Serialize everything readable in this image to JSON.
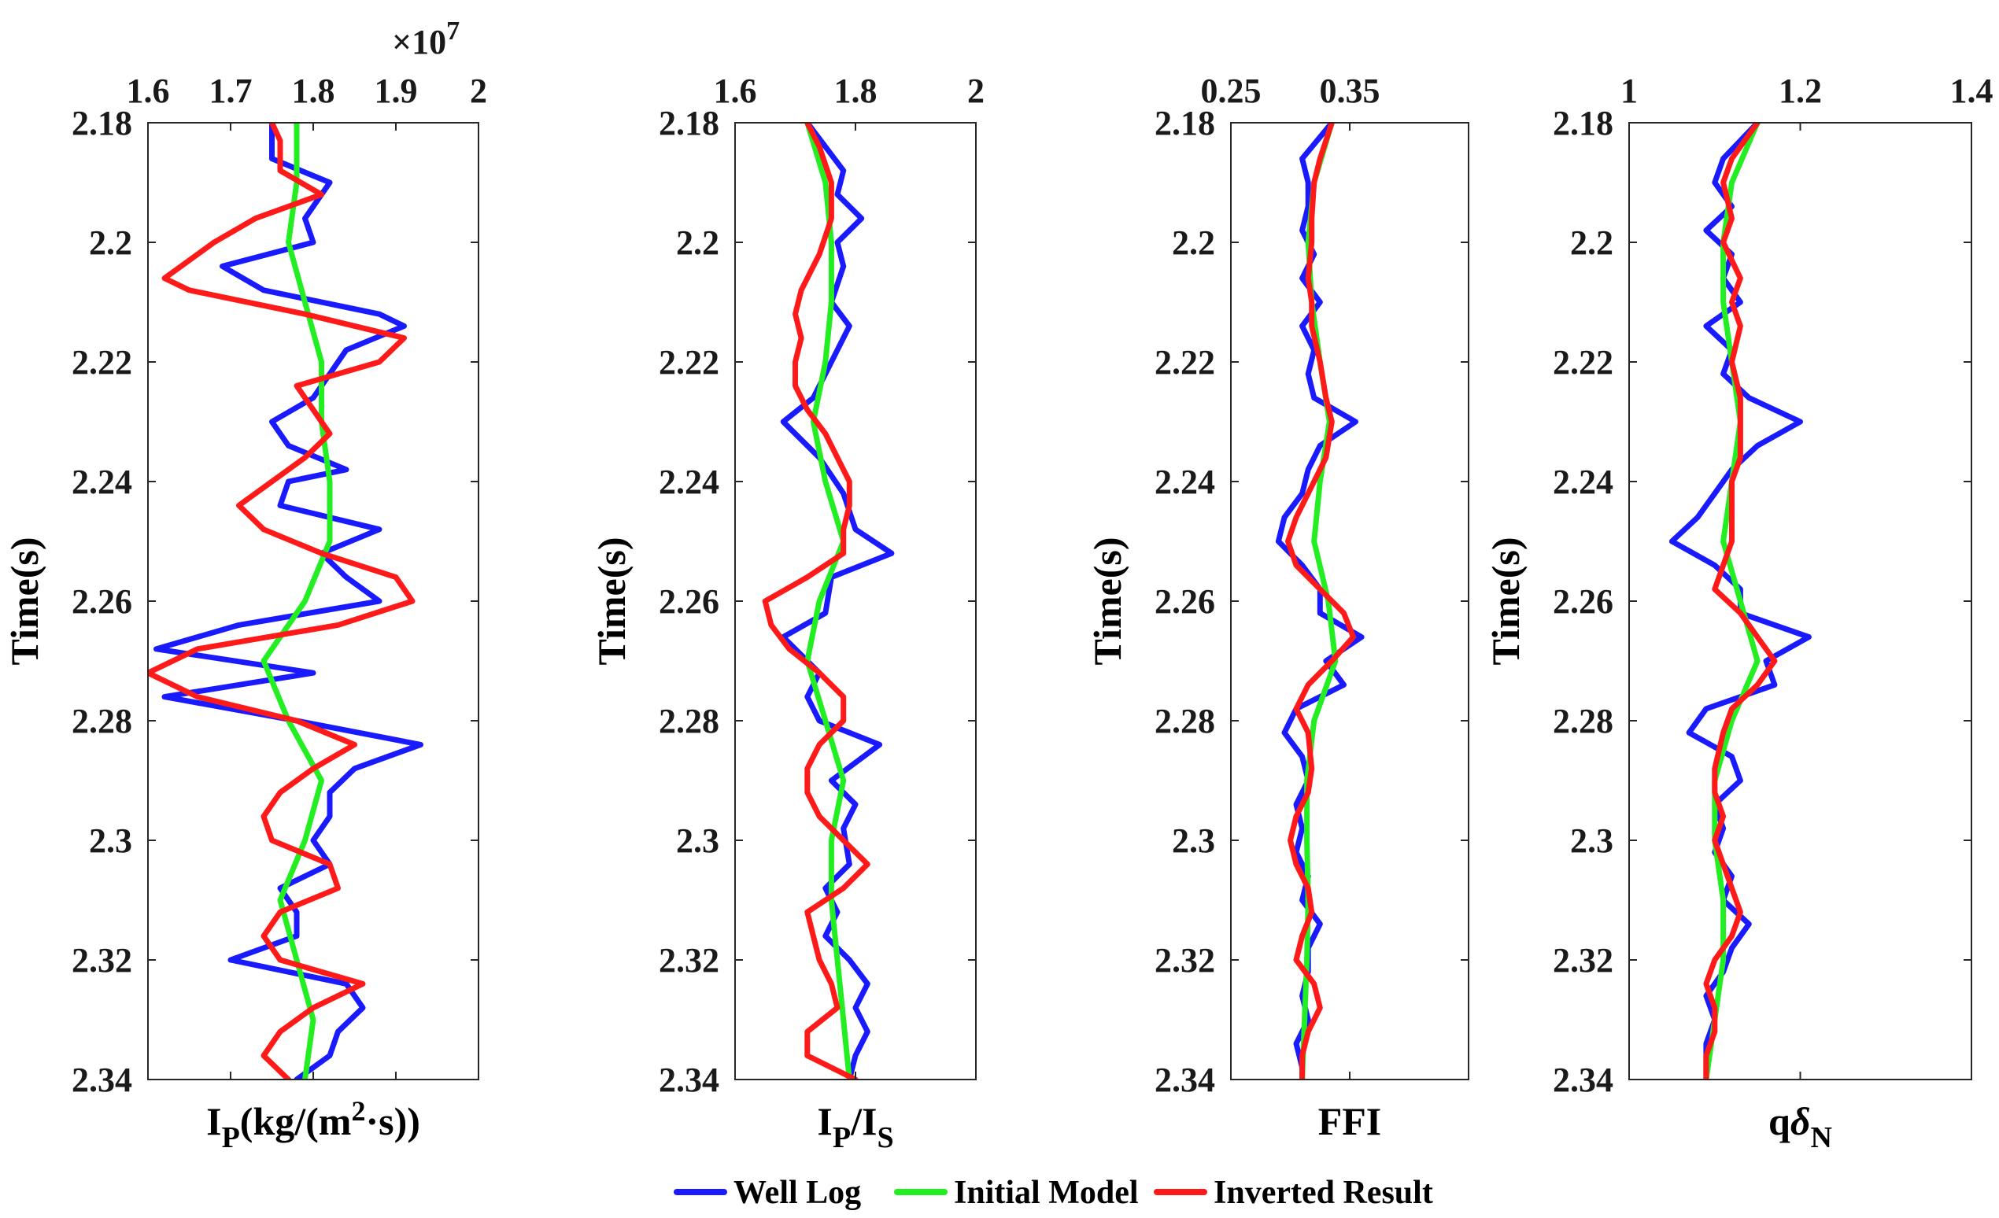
{
  "chart_data": [
    {
      "type": "line",
      "xlabel_main": "I",
      "xlabel_sub": "P",
      "xlabel_rest": "(kg/(m",
      "xlabel_sup": "2",
      "xlabel_tail": "·s))",
      "ylabel": "Time(s)",
      "xlim": [
        1.6,
        2.0
      ],
      "xticks": [
        1.6,
        1.7,
        1.8,
        1.9,
        2.0
      ],
      "xtick_labels": [
        "1.6",
        "1.7",
        "1.8",
        "1.9",
        "2"
      ],
      "exponent_prefix": "×10",
      "exponent_power": "7",
      "ylim": [
        2.18,
        2.34
      ],
      "yticks": [
        2.18,
        2.2,
        2.22,
        2.24,
        2.26,
        2.28,
        2.3,
        2.32,
        2.34
      ],
      "ytick_labels": [
        "2.18",
        "2.2",
        "2.22",
        "2.24",
        "2.26",
        "2.28",
        "2.3",
        "2.32",
        "2.34"
      ],
      "series": [
        {
          "name": "Well Log",
          "t": [
            2.18,
            2.186,
            2.19,
            2.196,
            2.2,
            2.204,
            2.208,
            2.212,
            2.214,
            2.218,
            2.222,
            2.226,
            2.23,
            2.234,
            2.238,
            2.24,
            2.244,
            2.248,
            2.252,
            2.256,
            2.26,
            2.264,
            2.268,
            2.272,
            2.276,
            2.28,
            2.284,
            2.288,
            2.292,
            2.296,
            2.3,
            2.304,
            2.308,
            2.312,
            2.316,
            2.32,
            2.324,
            2.328,
            2.332,
            2.336,
            2.34
          ],
          "values": [
            1.75,
            1.75,
            1.82,
            1.79,
            1.8,
            1.69,
            1.74,
            1.88,
            1.91,
            1.84,
            1.82,
            1.8,
            1.75,
            1.77,
            1.84,
            1.77,
            1.76,
            1.88,
            1.81,
            1.84,
            1.88,
            1.71,
            1.61,
            1.8,
            1.62,
            1.78,
            1.93,
            1.85,
            1.82,
            1.82,
            1.8,
            1.82,
            1.76,
            1.78,
            1.78,
            1.7,
            1.84,
            1.86,
            1.83,
            1.82,
            1.78
          ]
        },
        {
          "name": "Initial Model",
          "t": [
            2.18,
            2.19,
            2.2,
            2.21,
            2.22,
            2.23,
            2.24,
            2.25,
            2.26,
            2.27,
            2.28,
            2.29,
            2.3,
            2.31,
            2.32,
            2.33,
            2.34
          ],
          "values": [
            1.78,
            1.78,
            1.77,
            1.79,
            1.81,
            1.81,
            1.82,
            1.82,
            1.79,
            1.74,
            1.77,
            1.81,
            1.79,
            1.76,
            1.78,
            1.8,
            1.79
          ]
        },
        {
          "name": "Inverted Result",
          "t": [
            2.18,
            2.183,
            2.188,
            2.192,
            2.196,
            2.2,
            2.204,
            2.206,
            2.208,
            2.212,
            2.216,
            2.22,
            2.224,
            2.228,
            2.232,
            2.236,
            2.24,
            2.244,
            2.248,
            2.252,
            2.256,
            2.26,
            2.264,
            2.268,
            2.272,
            2.276,
            2.28,
            2.284,
            2.288,
            2.292,
            2.296,
            2.3,
            2.304,
            2.308,
            2.312,
            2.316,
            2.32,
            2.324,
            2.328,
            2.332,
            2.336,
            2.34
          ],
          "values": [
            1.75,
            1.76,
            1.76,
            1.81,
            1.73,
            1.68,
            1.64,
            1.62,
            1.65,
            1.79,
            1.91,
            1.88,
            1.78,
            1.8,
            1.82,
            1.79,
            1.75,
            1.71,
            1.74,
            1.81,
            1.9,
            1.92,
            1.83,
            1.66,
            1.6,
            1.66,
            1.78,
            1.85,
            1.8,
            1.76,
            1.74,
            1.75,
            1.82,
            1.83,
            1.76,
            1.74,
            1.76,
            1.86,
            1.8,
            1.76,
            1.74,
            1.77
          ]
        }
      ]
    },
    {
      "type": "line",
      "xlabel_main": "I",
      "xlabel_sub": "P",
      "xlabel_rest": "/I",
      "xlabel_sub2": "S",
      "ylabel": "Time(s)",
      "xlim": [
        1.6,
        2.0
      ],
      "xticks": [
        1.6,
        1.8,
        2.0
      ],
      "xtick_labels": [
        "1.6",
        "1.8",
        "2"
      ],
      "ylim": [
        2.18,
        2.34
      ],
      "yticks": [
        2.18,
        2.2,
        2.22,
        2.24,
        2.26,
        2.28,
        2.3,
        2.32,
        2.34
      ],
      "ytick_labels": [
        "2.18",
        "2.2",
        "2.22",
        "2.24",
        "2.26",
        "2.28",
        "2.3",
        "2.32",
        "2.34"
      ],
      "series": [
        {
          "name": "Well Log",
          "t": [
            2.18,
            2.188,
            2.192,
            2.196,
            2.2,
            2.204,
            2.21,
            2.214,
            2.218,
            2.222,
            2.226,
            2.23,
            2.236,
            2.242,
            2.248,
            2.252,
            2.256,
            2.262,
            2.266,
            2.272,
            2.276,
            2.28,
            2.284,
            2.29,
            2.294,
            2.298,
            2.304,
            2.308,
            2.312,
            2.316,
            2.32,
            2.324,
            2.328,
            2.332,
            2.336,
            2.34
          ],
          "values": [
            1.72,
            1.78,
            1.77,
            1.81,
            1.77,
            1.78,
            1.76,
            1.79,
            1.77,
            1.75,
            1.73,
            1.68,
            1.74,
            1.78,
            1.8,
            1.86,
            1.76,
            1.75,
            1.68,
            1.74,
            1.72,
            1.74,
            1.84,
            1.76,
            1.8,
            1.78,
            1.79,
            1.75,
            1.77,
            1.75,
            1.79,
            1.82,
            1.8,
            1.82,
            1.8,
            1.79
          ]
        },
        {
          "name": "Initial Model",
          "t": [
            2.18,
            2.19,
            2.2,
            2.21,
            2.22,
            2.23,
            2.24,
            2.25,
            2.26,
            2.27,
            2.28,
            2.29,
            2.3,
            2.31,
            2.32,
            2.33,
            2.34
          ],
          "values": [
            1.72,
            1.75,
            1.76,
            1.76,
            1.75,
            1.73,
            1.75,
            1.78,
            1.74,
            1.72,
            1.75,
            1.78,
            1.76,
            1.76,
            1.77,
            1.78,
            1.79
          ]
        },
        {
          "name": "Inverted Result",
          "t": [
            2.18,
            2.184,
            2.19,
            2.196,
            2.202,
            2.208,
            2.212,
            2.216,
            2.22,
            2.224,
            2.228,
            2.232,
            2.236,
            2.24,
            2.244,
            2.248,
            2.252,
            2.256,
            2.26,
            2.264,
            2.268,
            2.272,
            2.276,
            2.28,
            2.284,
            2.288,
            2.292,
            2.296,
            2.3,
            2.304,
            2.308,
            2.312,
            2.316,
            2.32,
            2.324,
            2.328,
            2.332,
            2.336,
            2.34
          ],
          "values": [
            1.72,
            1.74,
            1.76,
            1.76,
            1.74,
            1.71,
            1.7,
            1.71,
            1.7,
            1.7,
            1.72,
            1.75,
            1.77,
            1.79,
            1.79,
            1.78,
            1.78,
            1.72,
            1.65,
            1.66,
            1.69,
            1.74,
            1.78,
            1.78,
            1.74,
            1.72,
            1.72,
            1.74,
            1.78,
            1.82,
            1.78,
            1.72,
            1.73,
            1.74,
            1.76,
            1.77,
            1.72,
            1.72,
            1.8
          ]
        }
      ]
    },
    {
      "type": "line",
      "xlabel_main": "FFI",
      "ylabel": "Time(s)",
      "xlim": [
        0.25,
        0.45
      ],
      "xticks": [
        0.25,
        0.35
      ],
      "xtick_labels": [
        "0.25",
        "0.35"
      ],
      "ylim": [
        2.18,
        2.34
      ],
      "yticks": [
        2.18,
        2.2,
        2.22,
        2.24,
        2.26,
        2.28,
        2.3,
        2.32,
        2.34
      ],
      "ytick_labels": [
        "2.18",
        "2.2",
        "2.22",
        "2.24",
        "2.26",
        "2.28",
        "2.3",
        "2.32",
        "2.34"
      ],
      "series": [
        {
          "name": "Well Log",
          "t": [
            2.18,
            2.186,
            2.19,
            2.194,
            2.198,
            2.202,
            2.206,
            2.21,
            2.214,
            2.218,
            2.222,
            2.226,
            2.23,
            2.234,
            2.238,
            2.242,
            2.246,
            2.25,
            2.254,
            2.258,
            2.262,
            2.266,
            2.27,
            2.274,
            2.278,
            2.282,
            2.286,
            2.29,
            2.294,
            2.298,
            2.302,
            2.306,
            2.31,
            2.314,
            2.318,
            2.322,
            2.326,
            2.33,
            2.334,
            2.338,
            2.34
          ],
          "values": [
            0.335,
            0.31,
            0.315,
            0.315,
            0.31,
            0.32,
            0.31,
            0.325,
            0.31,
            0.32,
            0.315,
            0.32,
            0.355,
            0.325,
            0.315,
            0.31,
            0.295,
            0.29,
            0.31,
            0.325,
            0.325,
            0.36,
            0.33,
            0.345,
            0.305,
            0.295,
            0.31,
            0.315,
            0.305,
            0.31,
            0.305,
            0.315,
            0.31,
            0.325,
            0.315,
            0.315,
            0.31,
            0.315,
            0.305,
            0.31,
            0.31
          ]
        },
        {
          "name": "Initial Model",
          "t": [
            2.18,
            2.19,
            2.2,
            2.21,
            2.22,
            2.23,
            2.24,
            2.25,
            2.26,
            2.27,
            2.28,
            2.29,
            2.3,
            2.31,
            2.32,
            2.33,
            2.34
          ],
          "values": [
            0.335,
            0.32,
            0.315,
            0.318,
            0.325,
            0.333,
            0.325,
            0.32,
            0.332,
            0.338,
            0.32,
            0.314,
            0.314,
            0.315,
            0.314,
            0.312,
            0.31
          ]
        },
        {
          "name": "Inverted Result",
          "t": [
            2.18,
            2.186,
            2.19,
            2.196,
            2.2,
            2.206,
            2.21,
            2.214,
            2.22,
            2.226,
            2.23,
            2.236,
            2.24,
            2.246,
            2.25,
            2.254,
            2.258,
            2.262,
            2.266,
            2.27,
            2.274,
            2.278,
            2.282,
            2.288,
            2.292,
            2.296,
            2.3,
            2.304,
            2.308,
            2.312,
            2.316,
            2.32,
            2.324,
            2.328,
            2.332,
            2.336,
            2.34
          ],
          "values": [
            0.335,
            0.325,
            0.32,
            0.318,
            0.318,
            0.315,
            0.318,
            0.318,
            0.325,
            0.33,
            0.335,
            0.33,
            0.32,
            0.305,
            0.298,
            0.305,
            0.325,
            0.345,
            0.353,
            0.335,
            0.315,
            0.305,
            0.315,
            0.318,
            0.315,
            0.305,
            0.3,
            0.305,
            0.315,
            0.318,
            0.31,
            0.305,
            0.32,
            0.325,
            0.315,
            0.31,
            0.31
          ]
        }
      ]
    },
    {
      "type": "line",
      "xlabel_main": "q",
      "xlabel_greek": "δ",
      "xlabel_sub": "N",
      "ylabel": "Time(s)",
      "xlim": [
        1.0,
        1.4
      ],
      "xticks": [
        1.0,
        1.2,
        1.4
      ],
      "xtick_labels": [
        "1",
        "1.2",
        "1.4"
      ],
      "ylim": [
        2.18,
        2.34
      ],
      "yticks": [
        2.18,
        2.2,
        2.22,
        2.24,
        2.26,
        2.28,
        2.3,
        2.32,
        2.34
      ],
      "ytick_labels": [
        "2.18",
        "2.2",
        "2.22",
        "2.24",
        "2.26",
        "2.28",
        "2.3",
        "2.32",
        "2.34"
      ],
      "series": [
        {
          "name": "Well Log",
          "t": [
            2.18,
            2.186,
            2.19,
            2.194,
            2.198,
            2.202,
            2.206,
            2.21,
            2.214,
            2.218,
            2.222,
            2.226,
            2.23,
            2.234,
            2.238,
            2.242,
            2.246,
            2.25,
            2.254,
            2.258,
            2.262,
            2.266,
            2.27,
            2.274,
            2.278,
            2.282,
            2.286,
            2.29,
            2.294,
            2.298,
            2.302,
            2.306,
            2.31,
            2.314,
            2.318,
            2.322,
            2.326,
            2.33,
            2.334,
            2.338,
            2.34
          ],
          "values": [
            1.15,
            1.11,
            1.1,
            1.12,
            1.09,
            1.12,
            1.11,
            1.13,
            1.09,
            1.12,
            1.11,
            1.14,
            1.2,
            1.15,
            1.12,
            1.1,
            1.08,
            1.05,
            1.1,
            1.13,
            1.13,
            1.21,
            1.16,
            1.17,
            1.09,
            1.07,
            1.12,
            1.13,
            1.1,
            1.11,
            1.1,
            1.12,
            1.11,
            1.14,
            1.12,
            1.11,
            1.09,
            1.1,
            1.09,
            1.09,
            1.09
          ]
        },
        {
          "name": "Initial Model",
          "t": [
            2.18,
            2.19,
            2.2,
            2.21,
            2.22,
            2.23,
            2.24,
            2.25,
            2.26,
            2.27,
            2.28,
            2.29,
            2.3,
            2.31,
            2.32,
            2.33,
            2.34
          ],
          "values": [
            1.15,
            1.12,
            1.11,
            1.11,
            1.12,
            1.13,
            1.12,
            1.11,
            1.13,
            1.15,
            1.12,
            1.1,
            1.1,
            1.11,
            1.11,
            1.1,
            1.09
          ]
        },
        {
          "name": "Inverted Result",
          "t": [
            2.18,
            2.186,
            2.19,
            2.196,
            2.2,
            2.206,
            2.21,
            2.214,
            2.22,
            2.226,
            2.23,
            2.236,
            2.24,
            2.246,
            2.25,
            2.254,
            2.258,
            2.262,
            2.266,
            2.27,
            2.274,
            2.278,
            2.282,
            2.288,
            2.292,
            2.296,
            2.3,
            2.304,
            2.308,
            2.312,
            2.316,
            2.32,
            2.324,
            2.328,
            2.332,
            2.336,
            2.34
          ],
          "values": [
            1.15,
            1.12,
            1.11,
            1.12,
            1.11,
            1.13,
            1.12,
            1.13,
            1.12,
            1.13,
            1.13,
            1.13,
            1.12,
            1.12,
            1.12,
            1.11,
            1.1,
            1.13,
            1.15,
            1.17,
            1.15,
            1.12,
            1.11,
            1.1,
            1.1,
            1.11,
            1.1,
            1.11,
            1.12,
            1.13,
            1.12,
            1.1,
            1.09,
            1.1,
            1.1,
            1.09,
            1.09
          ]
        }
      ]
    }
  ],
  "legend": {
    "items": [
      {
        "label": "Well Log",
        "color": "#1a1aff"
      },
      {
        "label": "Initial Model",
        "color": "#22ee22"
      },
      {
        "label": "Inverted Result",
        "color": "#ff1a1a"
      }
    ]
  }
}
